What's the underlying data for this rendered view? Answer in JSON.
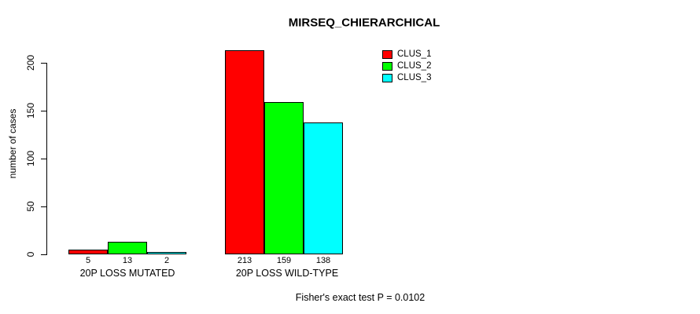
{
  "background_color": "#FFFFFF",
  "chart_data": {
    "type": "bar",
    "title": "MIRSEQ_CHIERARCHICAL",
    "xlabel": "",
    "ylabel": "number of cases",
    "categories": [
      "20P LOSS MUTATED",
      "20P LOSS WILD-TYPE"
    ],
    "series": [
      {
        "name": "CLUS_1",
        "color": "#FF0000",
        "values": [
          5,
          213
        ]
      },
      {
        "name": "CLUS_2",
        "color": "#00FF00",
        "values": [
          13,
          159
        ]
      },
      {
        "name": "CLUS_3",
        "color": "#00FFFF",
        "values": [
          2,
          138
        ]
      }
    ],
    "bar_value_labels": [
      [
        "5",
        "13",
        "2"
      ],
      [
        "213",
        "159",
        "138"
      ]
    ],
    "yticks": [
      0,
      50,
      100,
      150,
      200
    ],
    "ylim": [
      0,
      213
    ],
    "grid": false,
    "legend_position": "top-right",
    "legend_entries": [
      "CLUS_1",
      "CLUS_2",
      "CLUS_3"
    ],
    "annotation": "Fisher's exact test P = 0.0102",
    "axis_color": "#000000",
    "bar_border_color": "#000000"
  }
}
